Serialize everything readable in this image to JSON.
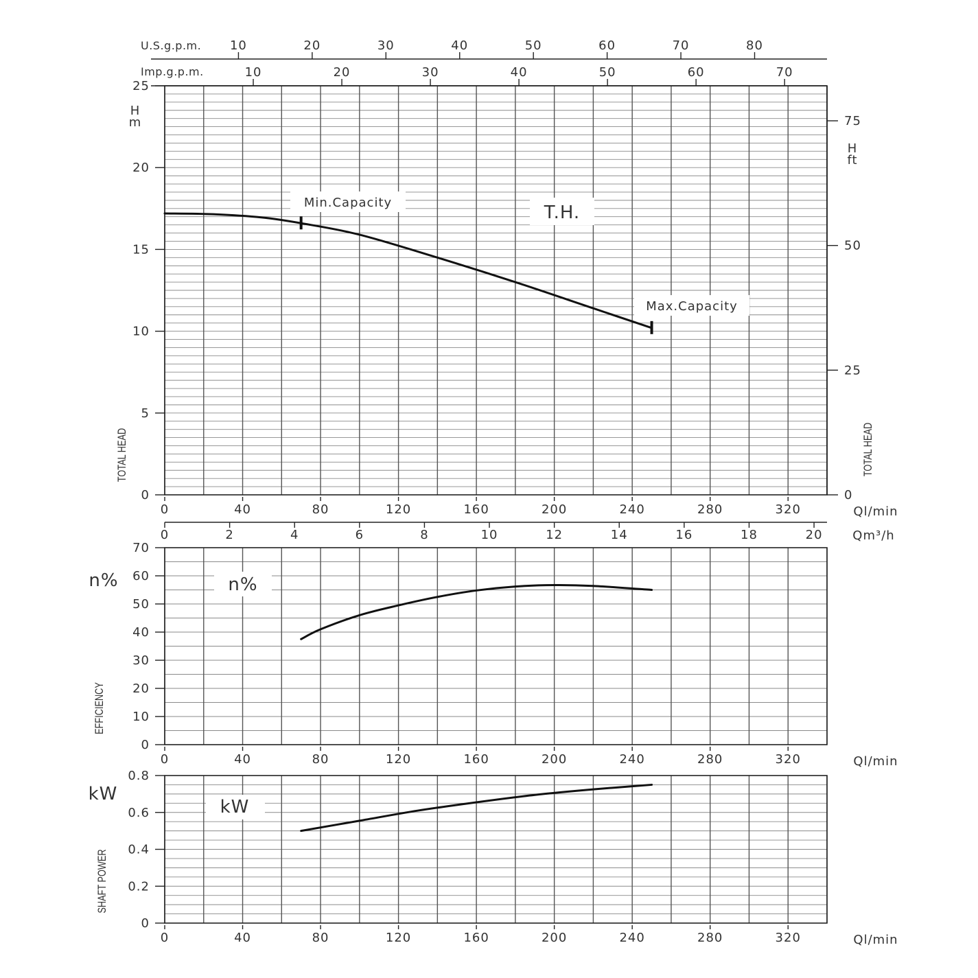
{
  "chart_data": [
    {
      "type": "line",
      "name_key": "head",
      "xlabel": "Ql/min",
      "xlim": [
        0,
        340
      ],
      "x_ticks": [
        "0",
        "40",
        "80",
        "120",
        "160",
        "200",
        "240",
        "280",
        "320"
      ],
      "ylabel_left": "TOTAL HEAD",
      "unit_left": "H m",
      "ylim": [
        0,
        25
      ],
      "y_ticks": [
        "0",
        "5",
        "10",
        "15",
        "20",
        "25"
      ],
      "ylabel_right": "TOTAL HEAD",
      "unit_right": "H ft",
      "right_ticks": [
        "0",
        "25",
        "50",
        "75"
      ],
      "top_axis_1": {
        "label": "U.S.g.p.m.",
        "ticks": [
          "10",
          "20",
          "30",
          "40",
          "50",
          "60",
          "70",
          "80"
        ]
      },
      "top_axis_2": {
        "label": "Imp.g.p.m.",
        "ticks": [
          "10",
          "20",
          "30",
          "40",
          "50",
          "60",
          "70"
        ]
      },
      "secondary_x_axis": {
        "label": "Qm³/h",
        "ticks": [
          "0",
          "2",
          "4",
          "6",
          "8",
          "10",
          "12",
          "14",
          "16",
          "18",
          "20"
        ]
      },
      "series": [
        {
          "label": "T.H.",
          "x": [
            0,
            25,
            50,
            70,
            100,
            140,
            180,
            220,
            250
          ],
          "y": [
            17.2,
            17.15,
            16.95,
            16.6,
            15.9,
            14.5,
            13.0,
            11.4,
            10.2
          ]
        }
      ],
      "annotations": [
        {
          "text": "Min.Capacity",
          "x": 70,
          "y": 16.6
        },
        {
          "text": "Max.Capacity",
          "x": 250,
          "y": 10.2
        }
      ],
      "grid": true
    },
    {
      "type": "line",
      "name_key": "eff",
      "xlabel": "Ql/min",
      "xlim": [
        0,
        340
      ],
      "x_ticks": [
        "0",
        "40",
        "80",
        "120",
        "160",
        "200",
        "240",
        "280",
        "320"
      ],
      "ylabel": "EFFICIENCY",
      "unit": "n%",
      "ylim": [
        0,
        70
      ],
      "y_ticks": [
        "0",
        "10",
        "20",
        "30",
        "40",
        "50",
        "60",
        "70"
      ],
      "series": [
        {
          "label": "n%",
          "x": [
            70,
            80,
            100,
            120,
            140,
            160,
            180,
            200,
            220,
            250
          ],
          "y": [
            37.5,
            41,
            46,
            49.5,
            52.5,
            54.8,
            56.2,
            56.7,
            56.4,
            55
          ]
        }
      ],
      "grid": true
    },
    {
      "type": "line",
      "name_key": "kw",
      "xlabel": "Ql/min",
      "xlim": [
        0,
        340
      ],
      "x_ticks": [
        "0",
        "40",
        "80",
        "120",
        "160",
        "200",
        "240",
        "280",
        "320"
      ],
      "ylabel": "SHAFT POWER",
      "unit": "kW",
      "ylim": [
        0,
        0.8
      ],
      "y_ticks": [
        "0",
        "0.2",
        "0.4",
        "0.6",
        "0.8"
      ],
      "series": [
        {
          "label": "kW",
          "x": [
            70,
            100,
            130,
            160,
            190,
            220,
            250
          ],
          "y": [
            0.5,
            0.555,
            0.61,
            0.655,
            0.695,
            0.725,
            0.75
          ]
        }
      ],
      "grid": true
    }
  ]
}
